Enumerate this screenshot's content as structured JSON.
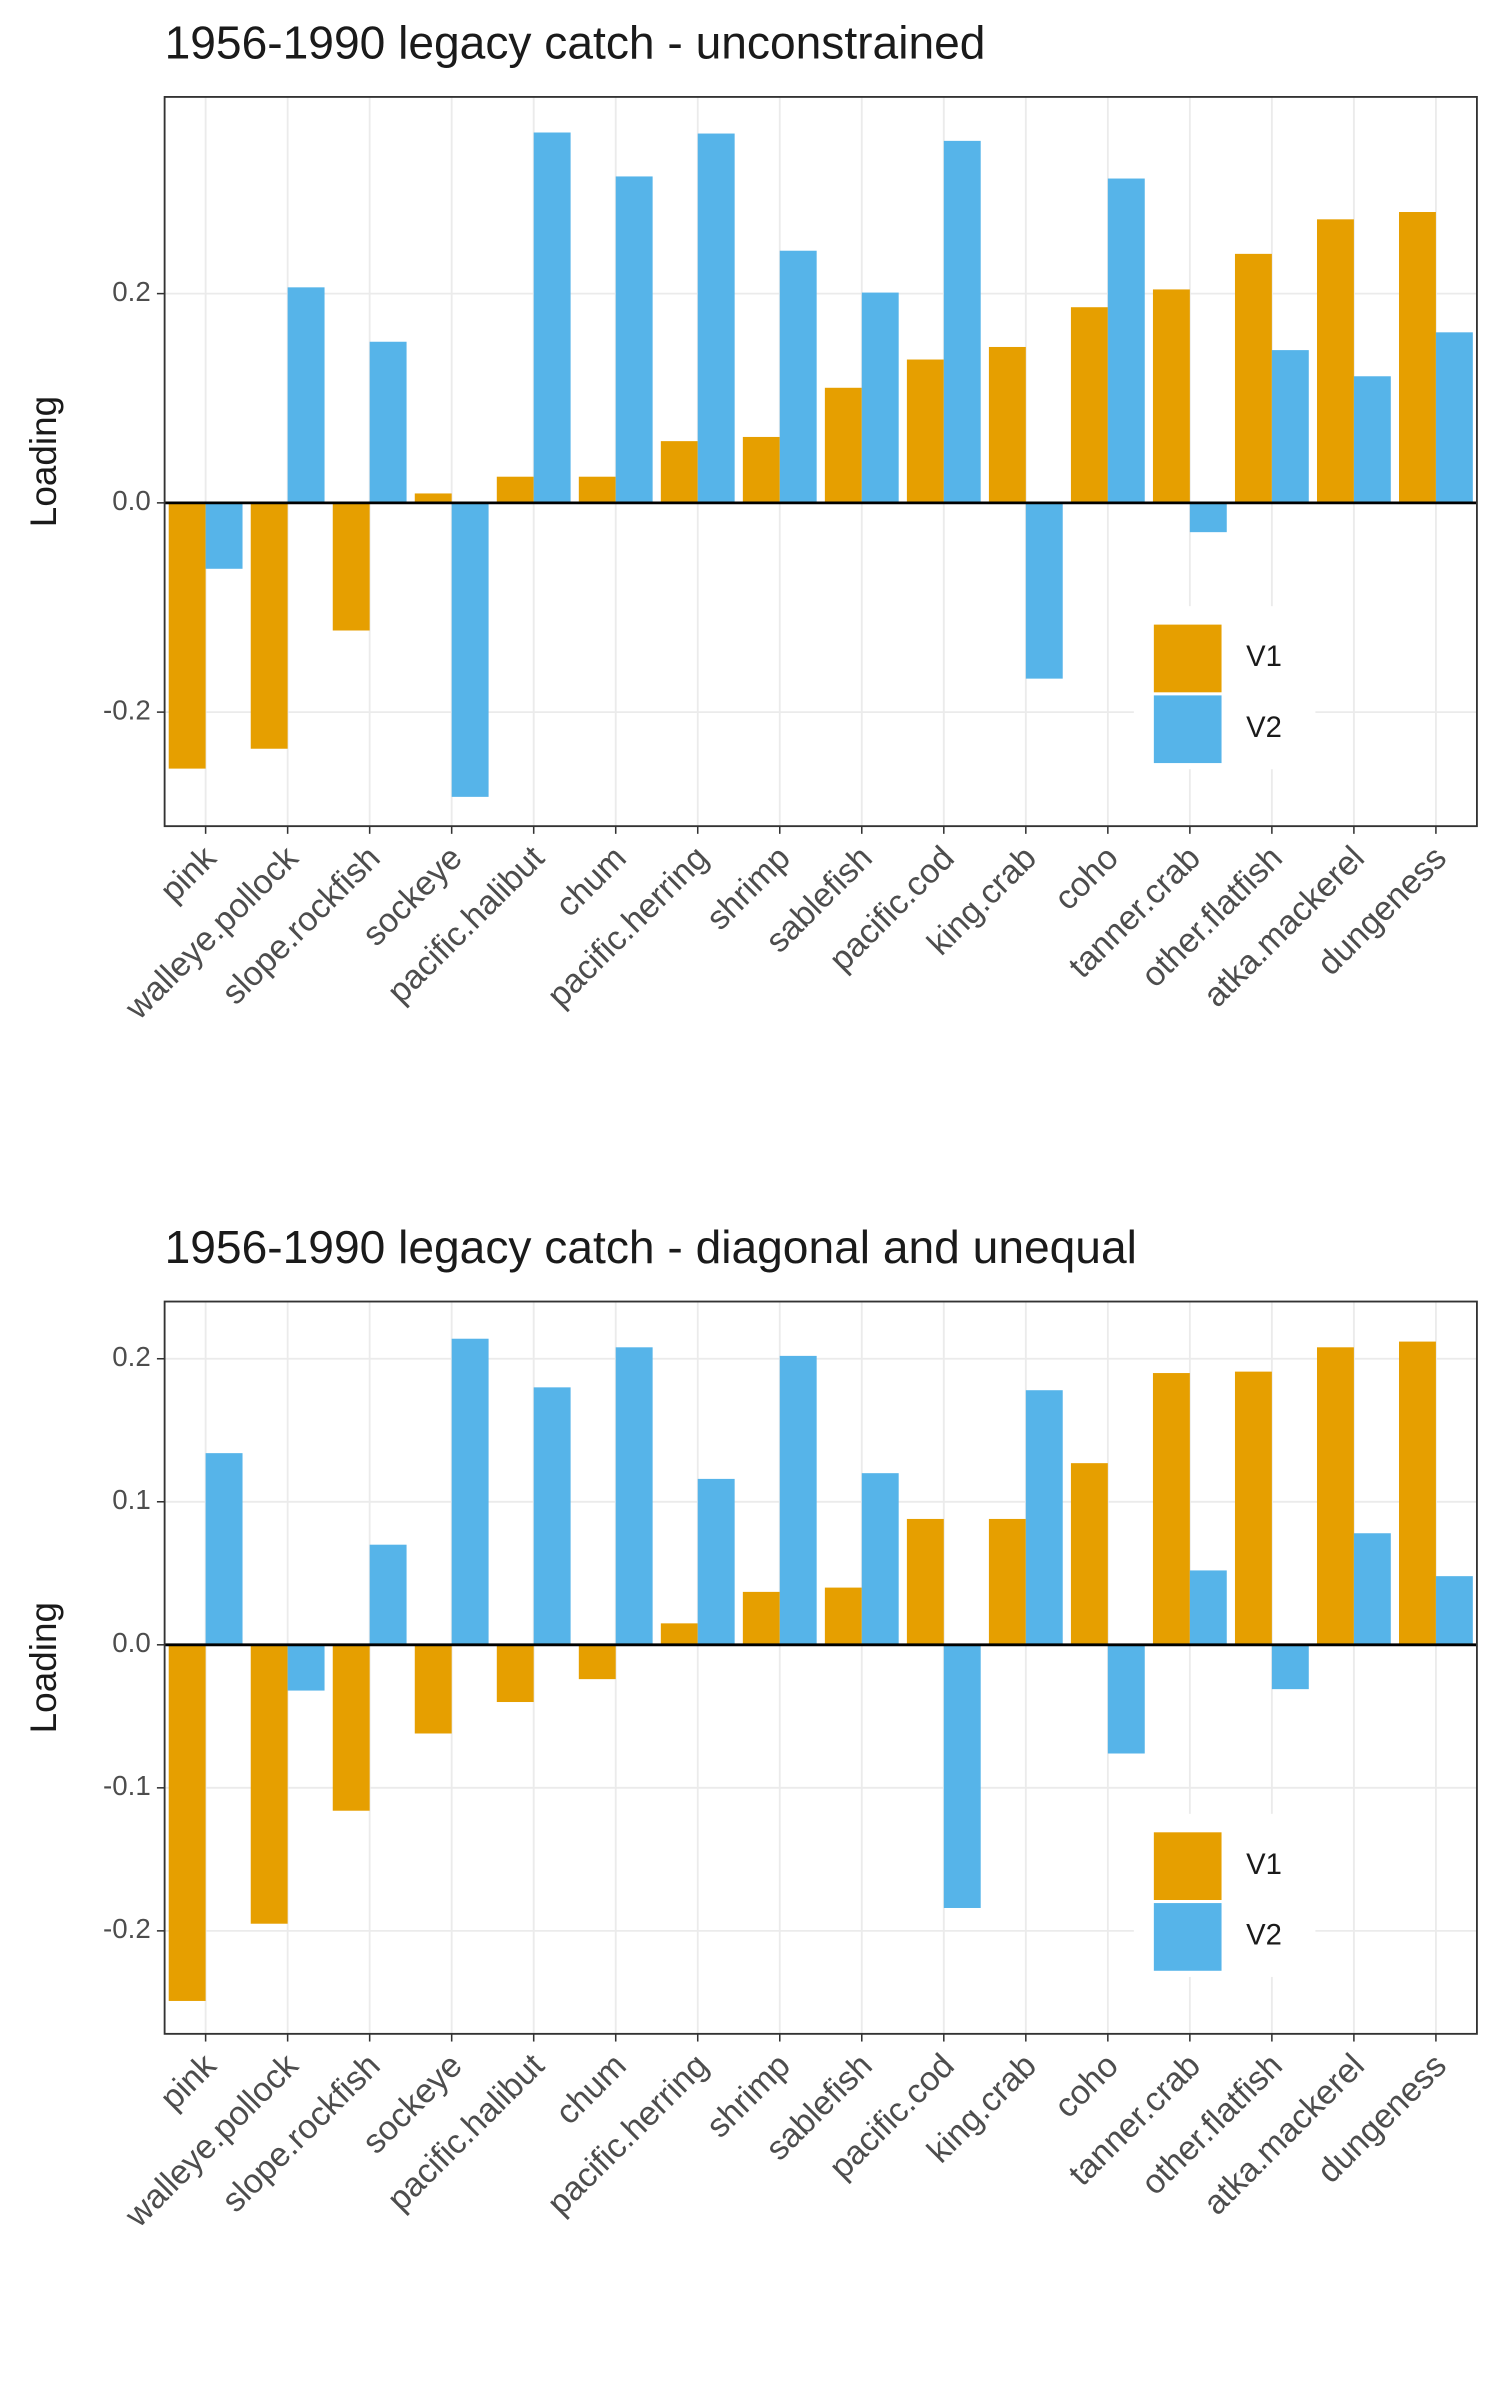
{
  "chart_data": [
    {
      "type": "bar",
      "title": "1956-1990 legacy catch - unconstrained",
      "y_label": "Loading",
      "categories": [
        "pink",
        "walleye.pollock",
        "slope.rockfish",
        "sockeye",
        "pacific.halibut",
        "chum",
        "pacific.herring",
        "shrimp",
        "sablefish",
        "pacific.cod",
        "king.crab",
        "coho",
        "tanner.crab",
        "other.flatfish",
        "atka.mackerel",
        "dungeness"
      ],
      "series": [
        {
          "name": "V1",
          "color": "#E69F00",
          "values": [
            -0.254,
            -0.235,
            -0.122,
            0.009,
            0.025,
            0.025,
            0.059,
            0.063,
            0.11,
            0.137,
            0.149,
            0.187,
            0.204,
            0.238,
            0.271,
            0.278
          ]
        },
        {
          "name": "V2",
          "color": "#56B4E9",
          "values": [
            -0.063,
            0.206,
            0.154,
            -0.281,
            0.354,
            0.312,
            0.353,
            0.241,
            0.201,
            0.346,
            -0.168,
            0.31,
            -0.028,
            0.146,
            0.121,
            0.163
          ]
        }
      ],
      "ylim": [
        -0.309,
        0.388
      ],
      "yticks": [
        -0.2,
        {
          "value": 0,
          "label": "0.0"
        },
        0.2
      ],
      "grid": true,
      "legend_position": "bottom-right"
    },
    {
      "type": "bar",
      "title": "1956-1990 legacy catch - diagonal and unequal",
      "y_label": "Loading",
      "categories": [
        "pink",
        "walleye.pollock",
        "slope.rockfish",
        "sockeye",
        "pacific.halibut",
        "chum",
        "pacific.herring",
        "shrimp",
        "sablefish",
        "pacific.cod",
        "king.crab",
        "coho",
        "tanner.crab",
        "other.flatfish",
        "atka.mackerel",
        "dungeness"
      ],
      "series": [
        {
          "name": "V1",
          "color": "#E69F00",
          "values": [
            -0.249,
            -0.195,
            -0.116,
            -0.062,
            -0.04,
            -0.024,
            0.015,
            0.037,
            0.04,
            0.088,
            0.088,
            0.127,
            0.19,
            0.191,
            0.208,
            0.212
          ]
        },
        {
          "name": "V2",
          "color": "#56B4E9",
          "values": [
            0.134,
            -0.032,
            0.07,
            0.214,
            0.18,
            0.208,
            0.116,
            0.202,
            0.12,
            -0.184,
            0.178,
            -0.076,
            0.052,
            -0.031,
            0.078,
            0.048
          ]
        }
      ],
      "ylim": [
        -0.272,
        0.24
      ],
      "yticks": [
        -0.2,
        -0.1,
        {
          "value": 0,
          "label": "0.0"
        },
        0.1,
        0.2
      ],
      "grid": true,
      "legend_position": "bottom-right"
    }
  ]
}
